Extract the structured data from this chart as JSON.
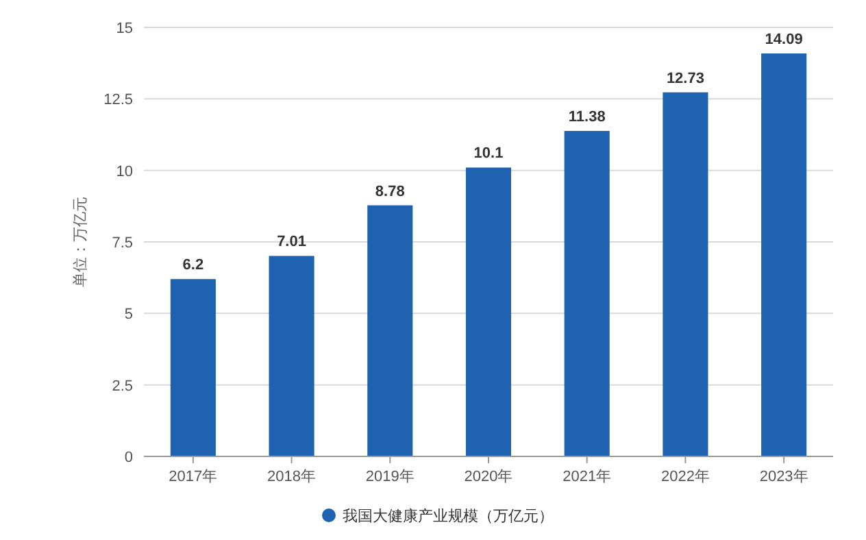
{
  "chart_data": {
    "type": "bar",
    "ylabel": "单位：万亿元",
    "categories": [
      "2017年",
      "2018年",
      "2019年",
      "2020年",
      "2021年",
      "2022年",
      "2023年"
    ],
    "series": [
      {
        "name": "我国大健康产业规模（万亿元）",
        "color": "#1f63b0",
        "values": [
          6.2,
          7.01,
          8.78,
          10.1,
          11.38,
          12.73,
          14.09
        ]
      }
    ],
    "ylim": [
      0,
      15
    ],
    "yticks": [
      0,
      2.5,
      5,
      7.5,
      10,
      12.5,
      15
    ],
    "grid": "y",
    "data_labels": true,
    "legend": "bottom"
  }
}
